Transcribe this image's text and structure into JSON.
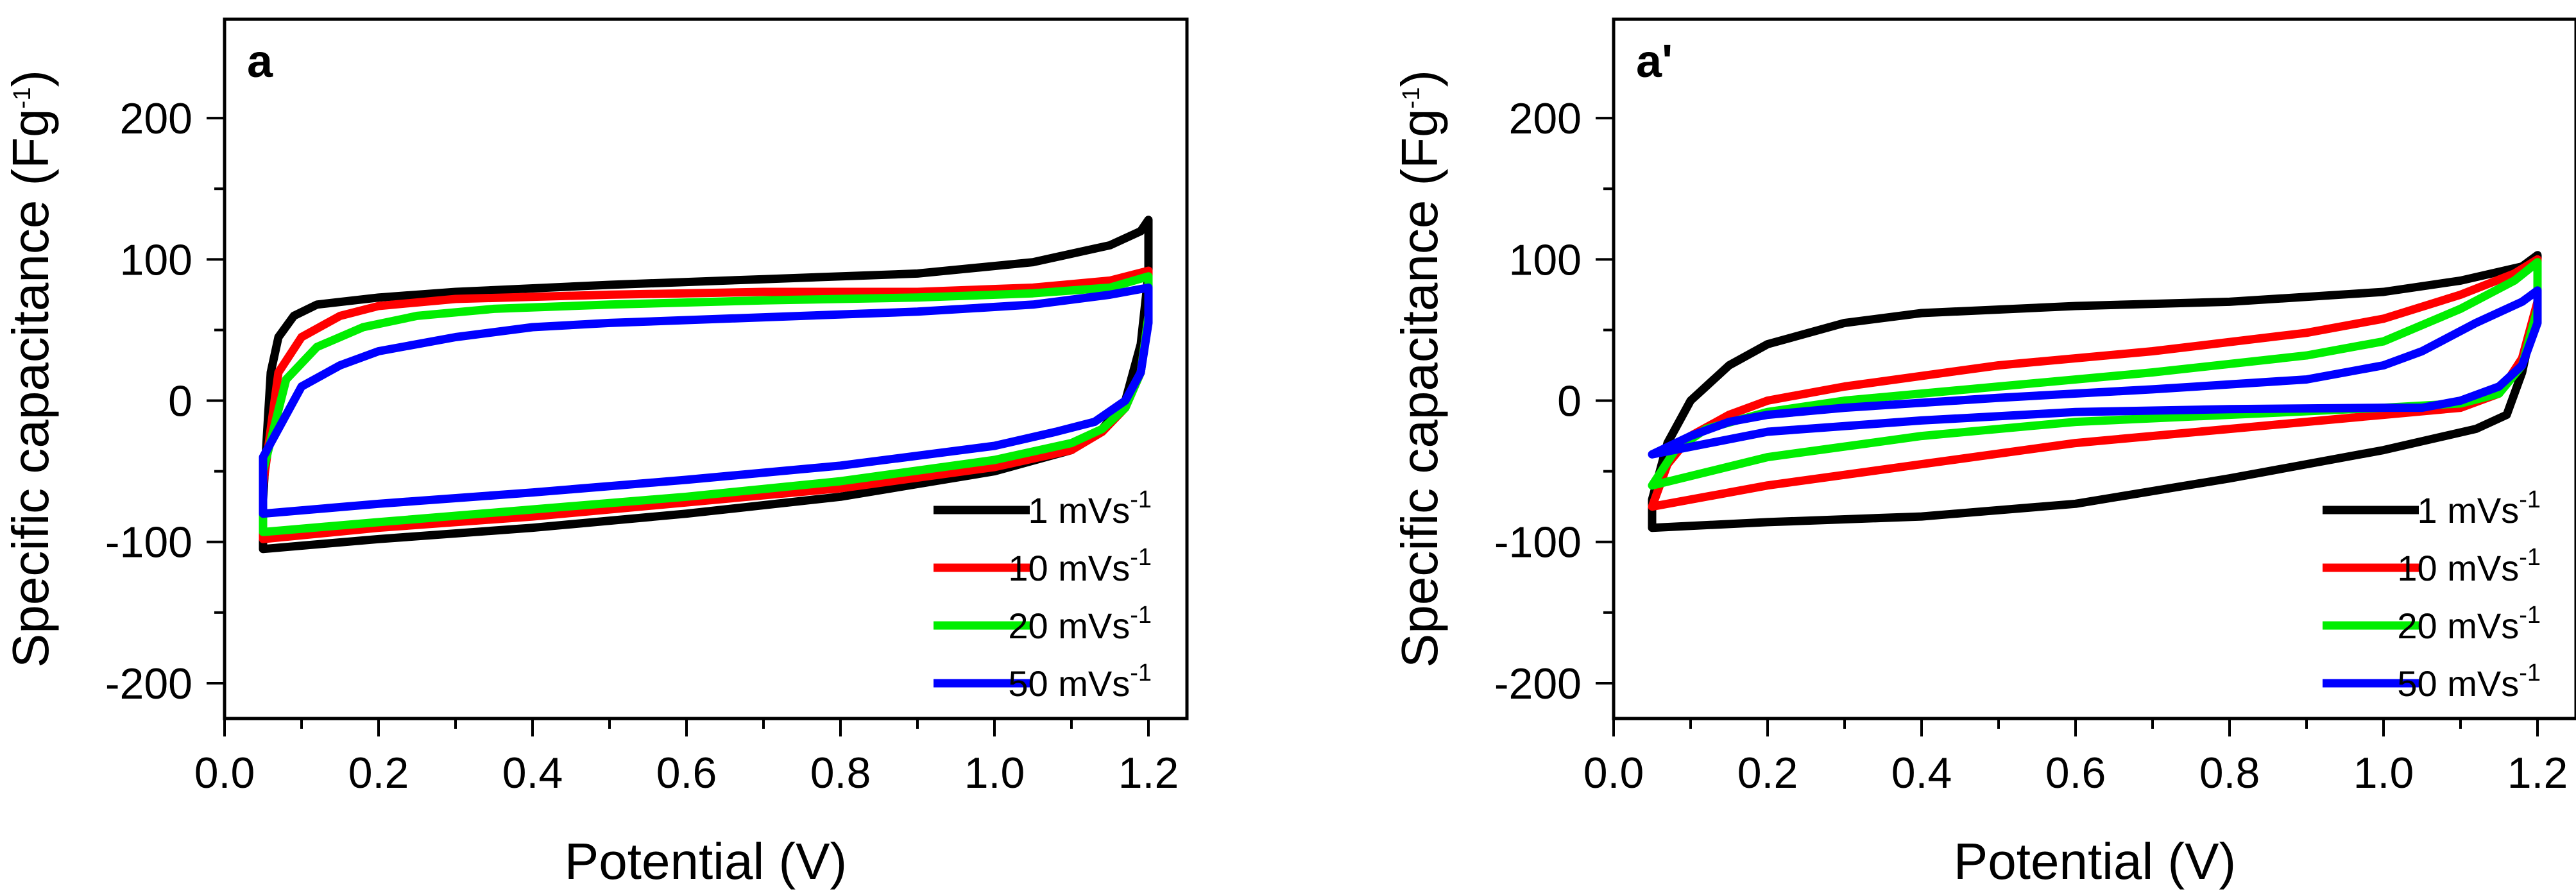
{
  "chart_data": [
    {
      "type": "line",
      "panel_label": "a",
      "xlabel": "Potential (V)",
      "ylabel": "Specific capacitance (Fg",
      "ylabel_sup": "-1",
      "ylabel_close": ")",
      "xlim": [
        0.0,
        1.25
      ],
      "ylim": [
        -225,
        270
      ],
      "xticks": [
        0.0,
        0.2,
        0.4,
        0.6,
        0.8,
        1.0,
        1.2
      ],
      "xtick_labels": [
        "0.0",
        "0.2",
        "0.4",
        "0.6",
        "0.8",
        "1.0",
        "1.2"
      ],
      "yticks": [
        -200,
        -100,
        0,
        100,
        200
      ],
      "ytick_labels": [
        "-200",
        "-100",
        "0",
        "100",
        "200"
      ],
      "legend_position": "bottom-right",
      "series": [
        {
          "name": "1 mVs",
          "sup": "-1",
          "color": "#000000",
          "points": [
            [
              0.05,
              -105
            ],
            [
              0.05,
              -70
            ],
            [
              0.06,
              20
            ],
            [
              0.07,
              45
            ],
            [
              0.09,
              60
            ],
            [
              0.12,
              68
            ],
            [
              0.2,
              73
            ],
            [
              0.3,
              77
            ],
            [
              0.5,
              82
            ],
            [
              0.7,
              86
            ],
            [
              0.9,
              90
            ],
            [
              1.05,
              98
            ],
            [
              1.15,
              110
            ],
            [
              1.19,
              120
            ],
            [
              1.2,
              128
            ],
            [
              1.2,
              90
            ],
            [
              1.19,
              40
            ],
            [
              1.17,
              0
            ],
            [
              1.14,
              -20
            ],
            [
              1.1,
              -35
            ],
            [
              1.0,
              -50
            ],
            [
              0.8,
              -68
            ],
            [
              0.6,
              -80
            ],
            [
              0.4,
              -90
            ],
            [
              0.2,
              -98
            ],
            [
              0.05,
              -105
            ]
          ]
        },
        {
          "name": "10 mVs",
          "sup": "-1",
          "color": "#ff0000",
          "points": [
            [
              0.05,
              -98
            ],
            [
              0.05,
              -60
            ],
            [
              0.07,
              20
            ],
            [
              0.1,
              45
            ],
            [
              0.15,
              60
            ],
            [
              0.2,
              67
            ],
            [
              0.3,
              72
            ],
            [
              0.5,
              75
            ],
            [
              0.7,
              77
            ],
            [
              0.9,
              77
            ],
            [
              1.05,
              80
            ],
            [
              1.15,
              85
            ],
            [
              1.2,
              92
            ],
            [
              1.2,
              60
            ],
            [
              1.19,
              20
            ],
            [
              1.17,
              -5
            ],
            [
              1.14,
              -22
            ],
            [
              1.1,
              -35
            ],
            [
              1.0,
              -47
            ],
            [
              0.8,
              -62
            ],
            [
              0.6,
              -72
            ],
            [
              0.4,
              -82
            ],
            [
              0.2,
              -90
            ],
            [
              0.05,
              -98
            ]
          ]
        },
        {
          "name": "20 mVs",
          "sup": "-1",
          "color": "#00ee00",
          "points": [
            [
              0.05,
              -93
            ],
            [
              0.05,
              -50
            ],
            [
              0.08,
              15
            ],
            [
              0.12,
              38
            ],
            [
              0.18,
              52
            ],
            [
              0.25,
              60
            ],
            [
              0.35,
              65
            ],
            [
              0.5,
              68
            ],
            [
              0.7,
              71
            ],
            [
              0.9,
              73
            ],
            [
              1.05,
              76
            ],
            [
              1.15,
              80
            ],
            [
              1.2,
              88
            ],
            [
              1.2,
              60
            ],
            [
              1.19,
              20
            ],
            [
              1.17,
              -5
            ],
            [
              1.14,
              -20
            ],
            [
              1.1,
              -30
            ],
            [
              1.0,
              -42
            ],
            [
              0.8,
              -57
            ],
            [
              0.6,
              -68
            ],
            [
              0.4,
              -77
            ],
            [
              0.2,
              -86
            ],
            [
              0.05,
              -93
            ]
          ]
        },
        {
          "name": "50 mVs",
          "sup": "-1",
          "color": "#0000ff",
          "points": [
            [
              0.05,
              -80
            ],
            [
              0.05,
              -40
            ],
            [
              0.1,
              10
            ],
            [
              0.15,
              25
            ],
            [
              0.2,
              35
            ],
            [
              0.3,
              45
            ],
            [
              0.4,
              52
            ],
            [
              0.5,
              55
            ],
            [
              0.7,
              59
            ],
            [
              0.9,
              63
            ],
            [
              1.05,
              68
            ],
            [
              1.15,
              75
            ],
            [
              1.2,
              80
            ],
            [
              1.2,
              55
            ],
            [
              1.19,
              20
            ],
            [
              1.17,
              0
            ],
            [
              1.13,
              -15
            ],
            [
              1.08,
              -22
            ],
            [
              1.0,
              -32
            ],
            [
              0.8,
              -46
            ],
            [
              0.6,
              -56
            ],
            [
              0.4,
              -65
            ],
            [
              0.2,
              -73
            ],
            [
              0.05,
              -80
            ]
          ]
        }
      ]
    },
    {
      "type": "line",
      "panel_label": "a'",
      "xlabel": "Potential (V)",
      "ylabel": "Specific capacitance (Fg",
      "ylabel_sup": "-1",
      "ylabel_close": ")",
      "xlim": [
        0.0,
        1.25
      ],
      "ylim": [
        -225,
        270
      ],
      "xticks": [
        0.0,
        0.2,
        0.4,
        0.6,
        0.8,
        1.0,
        1.2
      ],
      "xtick_labels": [
        "0.0",
        "0.2",
        "0.4",
        "0.6",
        "0.8",
        "1.0",
        "1.2"
      ],
      "yticks": [
        -200,
        -100,
        0,
        100,
        200
      ],
      "ytick_labels": [
        "-200",
        "-100",
        "0",
        "100",
        "200"
      ],
      "legend_position": "bottom-right",
      "series": [
        {
          "name": "1 mVs",
          "sup": "-1",
          "color": "#000000",
          "points": [
            [
              0.05,
              -90
            ],
            [
              0.05,
              -70
            ],
            [
              0.07,
              -30
            ],
            [
              0.1,
              0
            ],
            [
              0.15,
              25
            ],
            [
              0.2,
              40
            ],
            [
              0.3,
              55
            ],
            [
              0.4,
              62
            ],
            [
              0.6,
              67
            ],
            [
              0.8,
              70
            ],
            [
              1.0,
              77
            ],
            [
              1.1,
              85
            ],
            [
              1.18,
              95
            ],
            [
              1.2,
              103
            ],
            [
              1.2,
              70
            ],
            [
              1.18,
              20
            ],
            [
              1.16,
              -10
            ],
            [
              1.12,
              -20
            ],
            [
              1.0,
              -35
            ],
            [
              0.8,
              -55
            ],
            [
              0.6,
              -73
            ],
            [
              0.4,
              -82
            ],
            [
              0.2,
              -86
            ],
            [
              0.05,
              -90
            ]
          ]
        },
        {
          "name": "10 mVs",
          "sup": "-1",
          "color": "#ff0000",
          "points": [
            [
              0.05,
              -75
            ],
            [
              0.07,
              -45
            ],
            [
              0.1,
              -25
            ],
            [
              0.15,
              -10
            ],
            [
              0.2,
              0
            ],
            [
              0.3,
              10
            ],
            [
              0.5,
              25
            ],
            [
              0.7,
              35
            ],
            [
              0.9,
              48
            ],
            [
              1.0,
              58
            ],
            [
              1.1,
              75
            ],
            [
              1.17,
              90
            ],
            [
              1.2,
              100
            ],
            [
              1.2,
              70
            ],
            [
              1.18,
              30
            ],
            [
              1.15,
              5
            ],
            [
              1.1,
              -5
            ],
            [
              1.0,
              -10
            ],
            [
              0.8,
              -20
            ],
            [
              0.6,
              -30
            ],
            [
              0.4,
              -45
            ],
            [
              0.2,
              -60
            ],
            [
              0.05,
              -75
            ]
          ]
        },
        {
          "name": "20 mVs",
          "sup": "-1",
          "color": "#00ee00",
          "points": [
            [
              0.05,
              -60
            ],
            [
              0.08,
              -35
            ],
            [
              0.12,
              -20
            ],
            [
              0.2,
              -8
            ],
            [
              0.3,
              0
            ],
            [
              0.5,
              10
            ],
            [
              0.7,
              20
            ],
            [
              0.9,
              32
            ],
            [
              1.0,
              42
            ],
            [
              1.1,
              65
            ],
            [
              1.17,
              85
            ],
            [
              1.2,
              98
            ],
            [
              1.2,
              65
            ],
            [
              1.18,
              25
            ],
            [
              1.15,
              5
            ],
            [
              1.1,
              -2
            ],
            [
              1.0,
              -5
            ],
            [
              0.8,
              -10
            ],
            [
              0.6,
              -15
            ],
            [
              0.4,
              -25
            ],
            [
              0.2,
              -40
            ],
            [
              0.05,
              -60
            ]
          ]
        },
        {
          "name": "50 mVs",
          "sup": "-1",
          "color": "#0000ff",
          "points": [
            [
              0.05,
              -38
            ],
            [
              0.1,
              -25
            ],
            [
              0.15,
              -15
            ],
            [
              0.2,
              -10
            ],
            [
              0.3,
              -5
            ],
            [
              0.5,
              2
            ],
            [
              0.7,
              8
            ],
            [
              0.9,
              15
            ],
            [
              1.0,
              25
            ],
            [
              1.05,
              35
            ],
            [
              1.12,
              55
            ],
            [
              1.18,
              70
            ],
            [
              1.2,
              78
            ],
            [
              1.2,
              55
            ],
            [
              1.18,
              25
            ],
            [
              1.15,
              10
            ],
            [
              1.1,
              0
            ],
            [
              1.05,
              -5
            ],
            [
              1.0,
              -5
            ],
            [
              0.8,
              -6
            ],
            [
              0.6,
              -8
            ],
            [
              0.4,
              -14
            ],
            [
              0.2,
              -22
            ],
            [
              0.05,
              -38
            ]
          ]
        }
      ]
    }
  ]
}
